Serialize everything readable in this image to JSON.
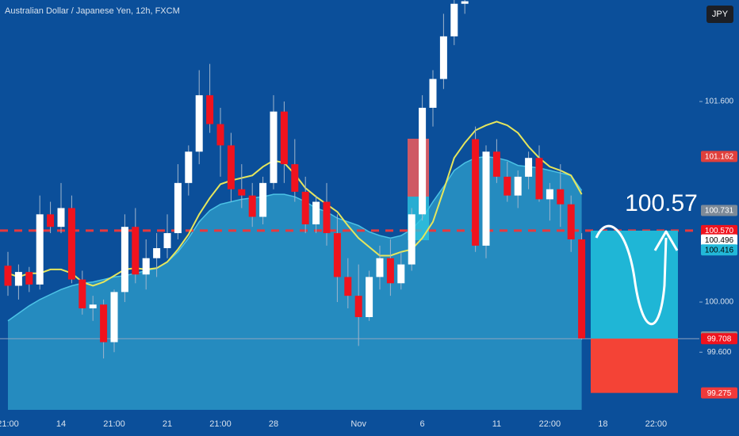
{
  "chart_data": {
    "type": "candlestick",
    "title": "Australian Dollar / Japanese Yen, 12h, FXCM",
    "currency": "JPY",
    "categories": [
      "21:00",
      null,
      null,
      null,
      null,
      "14",
      null,
      null,
      null,
      null,
      "21:00",
      null,
      null,
      null,
      null,
      "21",
      null,
      null,
      null,
      null,
      "21:00",
      null,
      null,
      null,
      null,
      "28",
      null,
      null,
      null,
      null,
      null,
      null,
      null,
      "Nov",
      null,
      null,
      null,
      null,
      null,
      "6",
      null,
      null,
      null,
      null,
      null,
      null,
      "11",
      null,
      null,
      null,
      null,
      "22:00",
      null,
      null,
      null,
      null,
      "18",
      null,
      null,
      null,
      null,
      "22:00",
      null,
      null,
      null
    ],
    "open": [
      100.29,
      100.13,
      100.24,
      100.14,
      100.7,
      100.6,
      100.75,
      100.18,
      99.95,
      99.98,
      99.68,
      100.08,
      100.6,
      100.22,
      100.35,
      100.43,
      100.55,
      100.95,
      101.2,
      101.65,
      101.42,
      101.25,
      100.9,
      100.85,
      100.68,
      100.95,
      101.52,
      101.1,
      100.88,
      100.62,
      100.8,
      100.55,
      100.2,
      100.05,
      99.88,
      100.2,
      100.35,
      100.15,
      100.3,
      100.7,
      101.55,
      101.78,
      102.12,
      102.38,
      101.3,
      100.45,
      101.2,
      101.0,
      100.85,
      101.0,
      101.15,
      100.82,
      100.9,
      100.78,
      100.5,
      null,
      null,
      null,
      null,
      null,
      null,
      null,
      null,
      null,
      null
    ],
    "high": [
      100.4,
      100.3,
      100.28,
      100.85,
      100.8,
      100.95,
      100.85,
      100.25,
      100.05,
      100.02,
      100.1,
      100.7,
      100.75,
      100.5,
      100.55,
      100.7,
      101.1,
      101.25,
      101.85,
      101.9,
      101.55,
      101.35,
      101.1,
      100.95,
      101.0,
      101.65,
      101.6,
      101.3,
      101.0,
      100.85,
      100.95,
      100.7,
      100.35,
      100.3,
      100.25,
      100.45,
      100.5,
      100.4,
      100.75,
      101.65,
      101.85,
      102.3,
      102.45,
      102.42,
      101.4,
      101.25,
      101.3,
      101.12,
      101.05,
      101.2,
      101.25,
      100.95,
      101.1,
      100.85,
      100.55,
      null,
      null,
      null,
      null,
      null,
      null,
      null,
      null,
      null,
      null
    ],
    "low": [
      100.05,
      100.02,
      100.08,
      100.1,
      100.55,
      100.55,
      100.15,
      99.9,
      99.85,
      99.55,
      99.6,
      100.0,
      100.15,
      100.1,
      100.2,
      100.35,
      100.5,
      100.85,
      101.1,
      101.35,
      101.0,
      100.8,
      100.75,
      100.6,
      100.62,
      100.9,
      100.95,
      100.8,
      100.55,
      100.55,
      100.45,
      100.0,
      99.95,
      99.65,
      99.85,
      100.1,
      100.05,
      100.1,
      100.25,
      100.65,
      101.4,
      101.7,
      102.05,
      102.3,
      100.4,
      100.35,
      100.95,
      100.8,
      100.75,
      100.9,
      100.8,
      100.65,
      100.6,
      100.4,
      99.7,
      null,
      null,
      null,
      null,
      null,
      null,
      null,
      null,
      null,
      null
    ],
    "close": [
      100.13,
      100.24,
      100.14,
      100.7,
      100.6,
      100.75,
      100.18,
      99.95,
      99.98,
      99.68,
      100.08,
      100.6,
      100.22,
      100.35,
      100.43,
      100.55,
      100.95,
      101.2,
      101.65,
      101.42,
      101.25,
      100.9,
      100.85,
      100.68,
      100.95,
      101.52,
      101.1,
      100.88,
      100.62,
      100.8,
      100.55,
      100.2,
      100.05,
      99.88,
      100.2,
      100.35,
      100.15,
      100.3,
      100.7,
      101.55,
      101.78,
      102.12,
      102.38,
      102.4,
      100.45,
      101.2,
      101.0,
      100.85,
      101.0,
      101.15,
      100.82,
      100.9,
      100.78,
      100.5,
      99.71,
      null,
      null,
      null,
      null,
      null,
      null,
      null,
      null,
      null,
      null
    ],
    "up_color": "#ffffff",
    "down_color": "#f0131e",
    "moving_average": {
      "color": "#e6e65c",
      "values": [
        100.23,
        100.2,
        100.23,
        100.23,
        100.26,
        100.26,
        100.23,
        100.16,
        100.13,
        100.16,
        100.21,
        100.26,
        100.27,
        100.26,
        100.27,
        100.32,
        100.42,
        100.54,
        100.7,
        100.83,
        100.94,
        100.97,
        100.99,
        101.01,
        101.08,
        101.13,
        101.11,
        101.02,
        100.91,
        100.84,
        100.78,
        100.72,
        100.61,
        100.51,
        100.44,
        100.37,
        100.37,
        100.4,
        100.42,
        100.51,
        100.64,
        100.89,
        101.15,
        101.27,
        101.37,
        101.41,
        101.44,
        101.41,
        101.35,
        101.24,
        101.15,
        101.08,
        101.05,
        101.01,
        100.86,
        null,
        null,
        null,
        null,
        null,
        null,
        null,
        null,
        null,
        null
      ]
    },
    "area": {
      "color": "#2a95c6",
      "values": [
        99.85,
        99.91,
        99.97,
        100.02,
        100.06,
        100.1,
        100.13,
        100.15,
        100.16,
        100.18,
        100.2,
        100.21,
        100.23,
        100.25,
        100.27,
        100.32,
        100.4,
        100.51,
        100.64,
        100.73,
        100.78,
        100.8,
        100.82,
        100.83,
        100.84,
        100.86,
        100.86,
        100.84,
        100.8,
        100.75,
        100.72,
        100.67,
        100.64,
        100.61,
        100.56,
        100.53,
        100.51,
        100.53,
        100.58,
        100.67,
        100.8,
        100.92,
        101.05,
        101.11,
        101.15,
        101.16,
        101.15,
        101.13,
        101.09,
        101.08,
        101.07,
        101.05,
        101.03,
        101.01,
        100.89,
        null,
        null,
        null,
        null,
        null,
        null,
        null,
        null,
        null,
        null
      ]
    },
    "ylim": [
      99.14,
      102.41
    ],
    "yticks": [
      {
        "value": 99.6,
        "label": "99.600"
      },
      {
        "value": 100,
        "label": "100.000"
      },
      {
        "value": 101.6,
        "label": "101.600"
      }
    ],
    "price_labels": [
      {
        "value": 101.162,
        "label": "101.162",
        "color": "#e0403c",
        "text_color": "#ffffff"
      },
      {
        "value": 100.731,
        "label": "100.731",
        "color": "#7d8a98",
        "text_color": "#ffffff"
      },
      {
        "value": 100.57,
        "label": "100.570",
        "color": "#f0131e",
        "text_color": "#ffffff"
      },
      {
        "value": 100.496,
        "label": "100.496",
        "color": "#ffffff",
        "text_color": "#000000"
      },
      {
        "value": 100.416,
        "label": "100.416",
        "color": "#22b8d8",
        "text_color": "#000000"
      },
      {
        "value": 99.722,
        "label": "99.722",
        "color": "#8a8f96",
        "text_color": "#ffffff"
      },
      {
        "value": 99.708,
        "label": "99.708",
        "color": "#f0131e",
        "text_color": "#ffffff"
      },
      {
        "value": 99.275,
        "label": "99.275",
        "color": "#f03a3a",
        "text_color": "#ffffff"
      }
    ],
    "annotation": "100.57"
  }
}
